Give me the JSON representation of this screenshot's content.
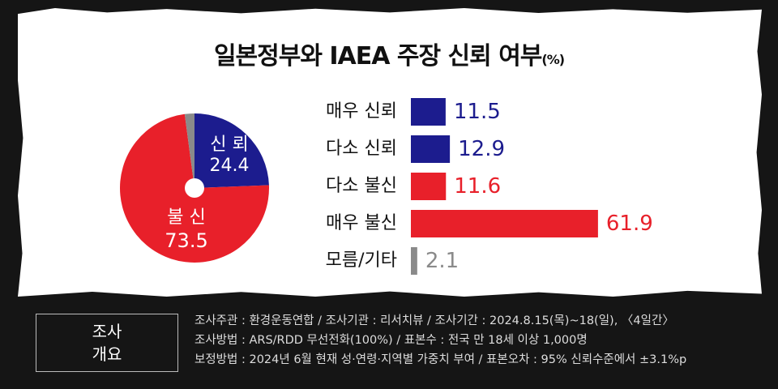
{
  "title": "일본정부와 IAEA 주장 신뢰 여부",
  "title_unit": "(%)",
  "chart_data": [
    {
      "type": "pie",
      "slices": [
        {
          "name": "신뢰",
          "value": 24.4,
          "color": "#1c1c8e"
        },
        {
          "name": "불신",
          "value": 73.5,
          "color": "#e8202a"
        },
        {
          "name": "",
          "value": 2.1,
          "color": "#8a8a8a"
        }
      ]
    },
    {
      "type": "bar",
      "orientation": "horizontal",
      "categories": [
        "매우 신뢰",
        "다소 신뢰",
        "다소 불신",
        "매우 불신",
        "모름/기타"
      ],
      "values": [
        11.5,
        12.9,
        11.6,
        61.9,
        2.1
      ],
      "colors": [
        "#1c1c8e",
        "#1c1c8e",
        "#e8202a",
        "#e8202a",
        "#8a8a8a"
      ]
    }
  ],
  "pie_labels": {
    "trust": "신 뢰",
    "trust_value": "24.4",
    "distrust": "불 신",
    "distrust_value": "73.5"
  },
  "summary": {
    "box_line1": "조사",
    "box_line2": "개요",
    "lines": [
      "조사주관 : 환경운동연합 / 조사기관 : 리서치뷰 / 조사기간 : 2024.8.15(목)~18(일), 〈4일간〉",
      "조사방법 : ARS/RDD 무선전화(100%) / 표본수 : 전국 만 18세 이상 1,000명",
      "보정방법 : 2024년 6월 현재 성·연령·지역별 가중치 부여 / 표본오차 : 95% 신뢰수준에서 ±3.1%p"
    ]
  }
}
